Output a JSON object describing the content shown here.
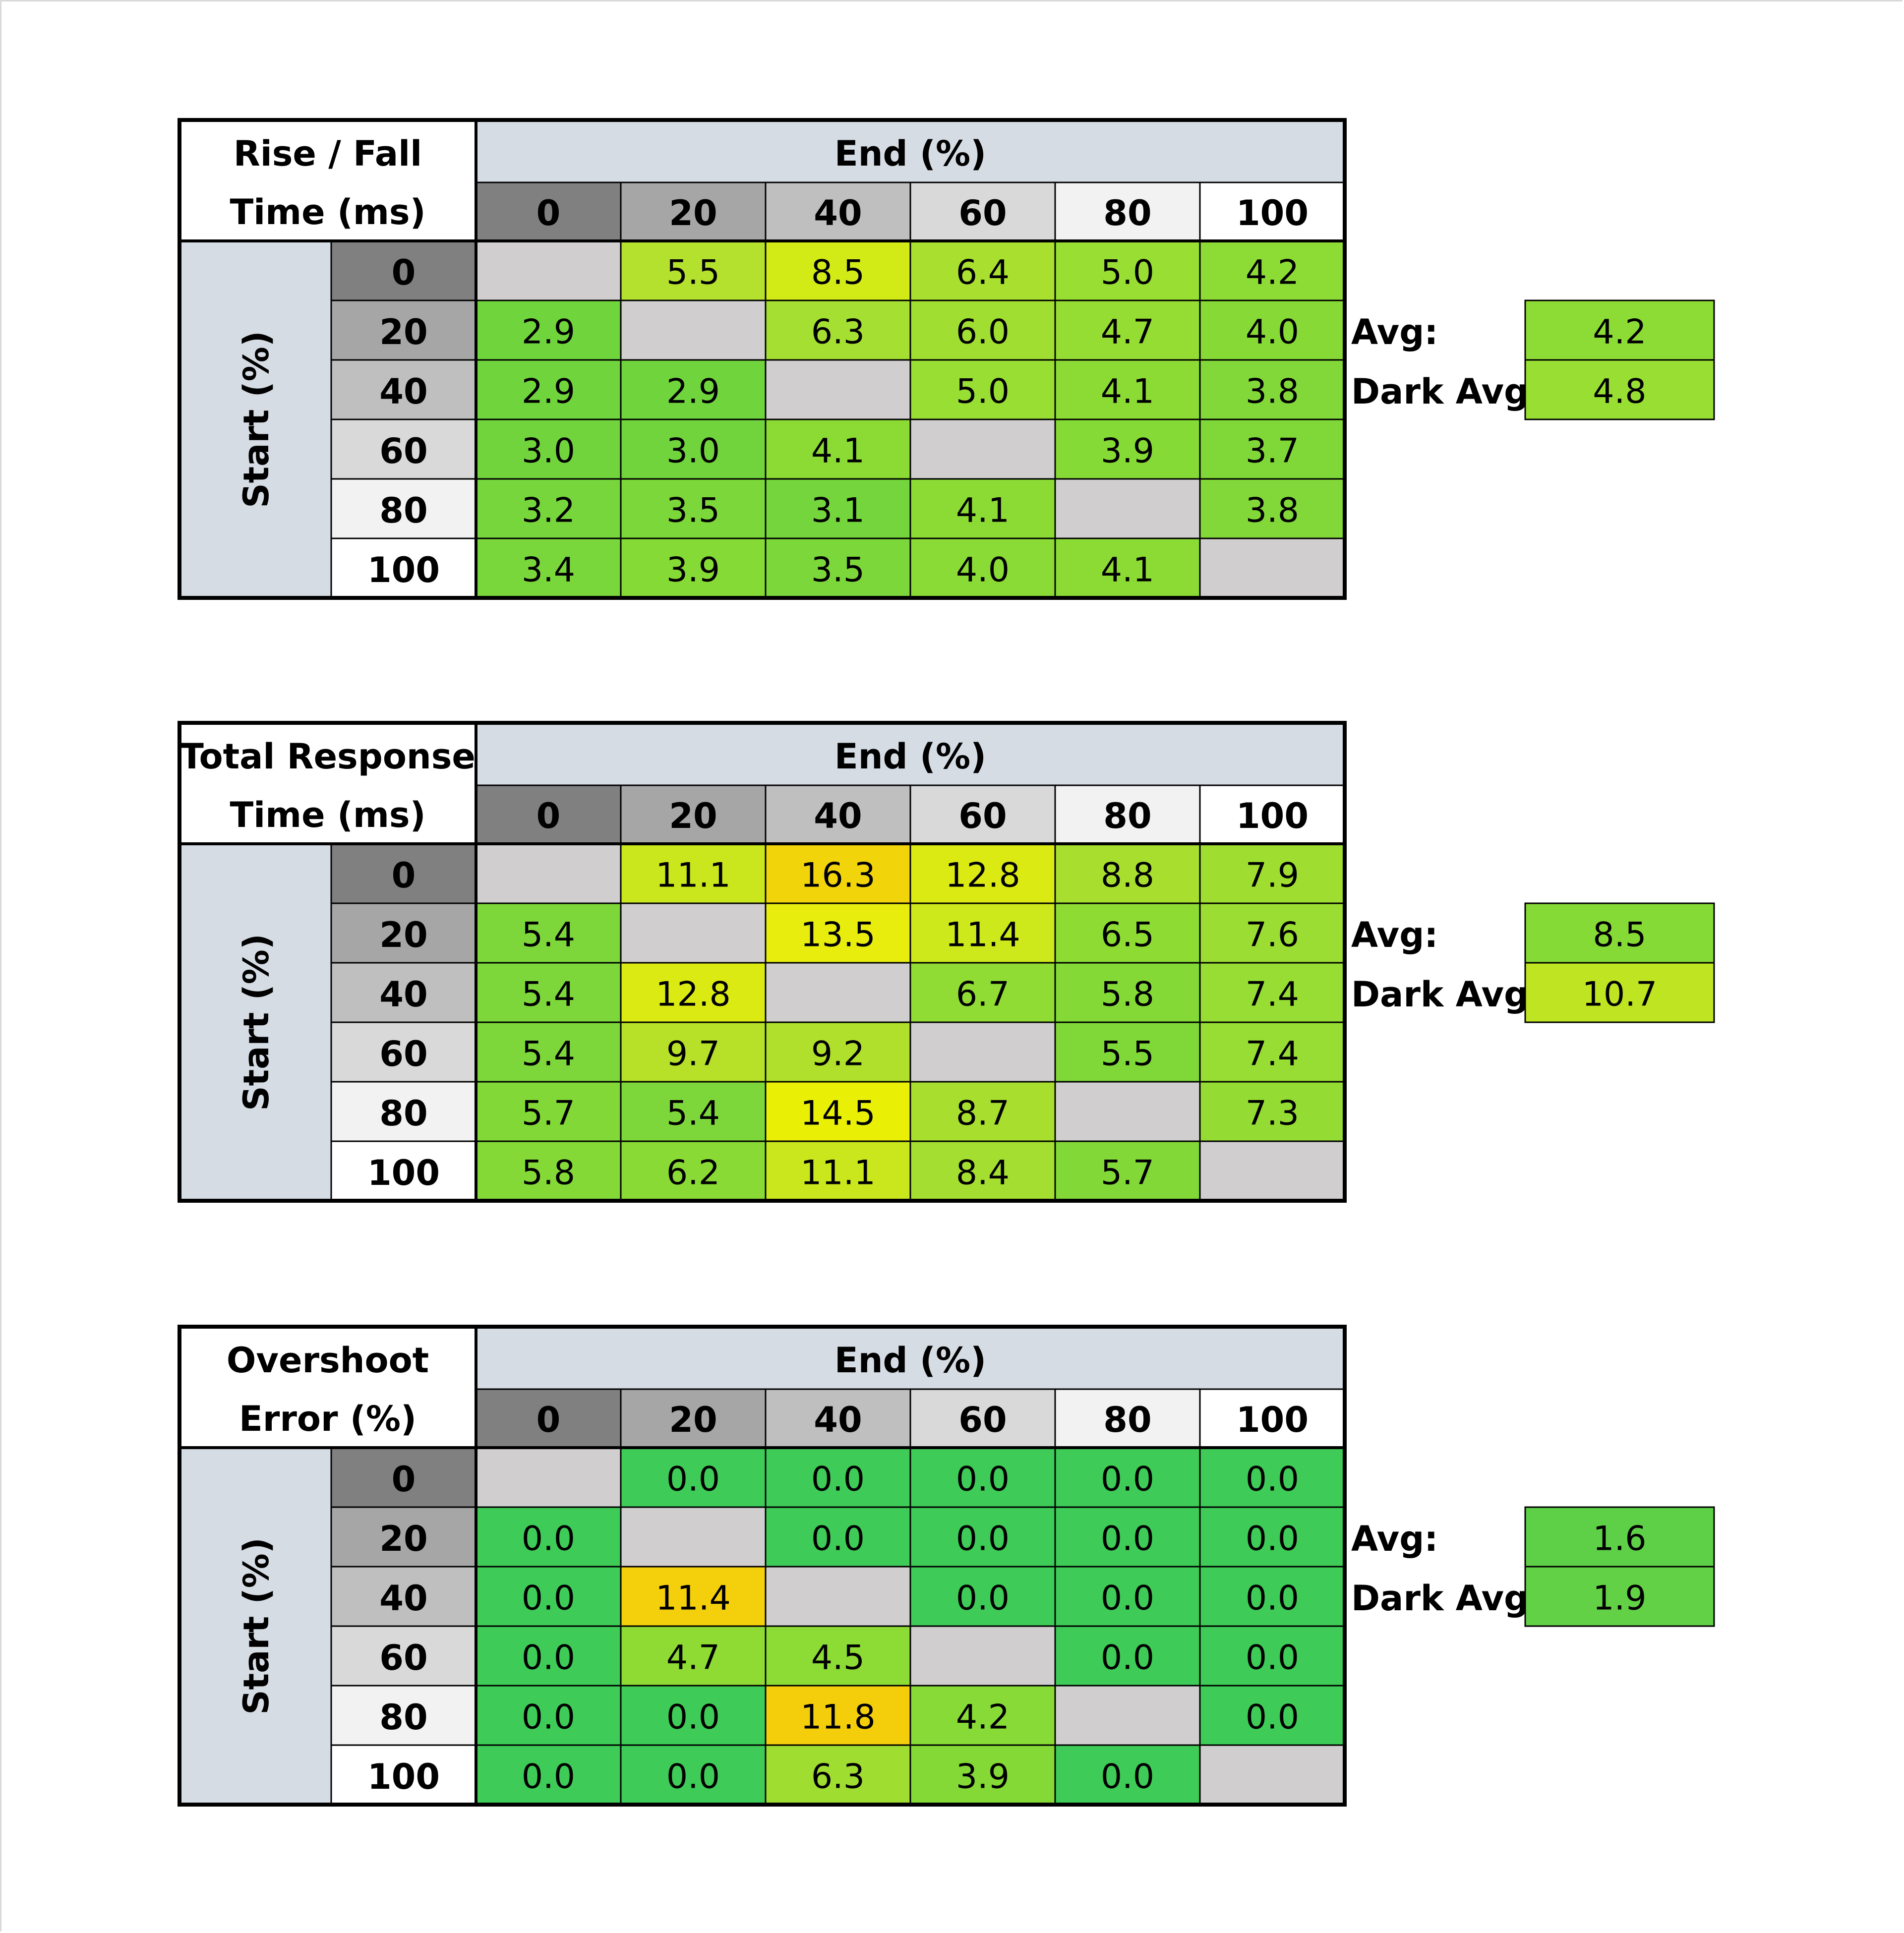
{
  "chart_data": [
    {
      "type": "heatmap",
      "title_lines": [
        "Rise / Fall",
        "Time (ms)"
      ],
      "xlabel": "End (%)",
      "ylabel": "Start (%)",
      "x_categories": [
        "0",
        "20",
        "40",
        "60",
        "80",
        "100"
      ],
      "y_categories": [
        "0",
        "20",
        "40",
        "60",
        "80",
        "100"
      ],
      "values": [
        [
          "",
          "5.5",
          "8.5",
          "6.4",
          "5.0",
          "4.2"
        ],
        [
          "2.9",
          "",
          "6.3",
          "6.0",
          "4.7",
          "4.0"
        ],
        [
          "2.9",
          "2.9",
          "",
          "5.0",
          "4.1",
          "3.8"
        ],
        [
          "3.0",
          "3.0",
          "4.1",
          "",
          "3.9",
          "3.7"
        ],
        [
          "3.2",
          "3.5",
          "3.1",
          "4.1",
          "",
          "3.8"
        ],
        [
          "3.4",
          "3.9",
          "3.5",
          "4.0",
          "4.1",
          ""
        ]
      ],
      "cell_colors": [
        [
          "#d0cece",
          "#b4e02e",
          "#d2ea16",
          "#a9e030",
          "#98de33",
          "#8ddc35"
        ],
        [
          "#70d43d",
          "#d0cece",
          "#a4df31",
          "#a0de31",
          "#96dd33",
          "#87da36"
        ],
        [
          "#70d43d",
          "#70d43d",
          "#d0cece",
          "#98de33",
          "#8cdb35",
          "#82d838"
        ],
        [
          "#71d43d",
          "#71d43d",
          "#8cdb35",
          "#d0cece",
          "#86da36",
          "#80d838"
        ],
        [
          "#76d63c",
          "#7cd73a",
          "#74d53c",
          "#8cdb35",
          "#d0cece",
          "#82d838"
        ],
        [
          "#79d63b",
          "#86da36",
          "#7cd73a",
          "#8adb35",
          "#8cdb35",
          "#d0cece"
        ]
      ],
      "summary": [
        {
          "label": "Avg:",
          "value": "4.2",
          "color": "#8ddc35"
        },
        {
          "label": "Dark Avg:",
          "value": "4.8",
          "color": "#98de33"
        }
      ]
    },
    {
      "type": "heatmap",
      "title_lines": [
        "Total Response",
        "Time (ms)"
      ],
      "xlabel": "End (%)",
      "ylabel": "Start (%)",
      "x_categories": [
        "0",
        "20",
        "40",
        "60",
        "80",
        "100"
      ],
      "y_categories": [
        "0",
        "20",
        "40",
        "60",
        "80",
        "100"
      ],
      "values": [
        [
          "",
          "11.1",
          "16.3",
          "12.8",
          "8.8",
          "7.9"
        ],
        [
          "5.4",
          "",
          "13.5",
          "11.4",
          "6.5",
          "7.6"
        ],
        [
          "5.4",
          "12.8",
          "",
          "6.7",
          "5.8",
          "7.4"
        ],
        [
          "5.4",
          "9.7",
          "9.2",
          "",
          "5.5",
          "7.4"
        ],
        [
          "5.7",
          "5.4",
          "14.5",
          "8.7",
          "",
          "7.3"
        ],
        [
          "5.8",
          "6.2",
          "11.1",
          "8.4",
          "5.7",
          ""
        ]
      ],
      "cell_colors": [
        [
          "#d0cece",
          "#c9e71c",
          "#f2d40a",
          "#dcea14",
          "#a8df2f",
          "#9fde31"
        ],
        [
          "#7ed73a",
          "#d0cece",
          "#e8ed0e",
          "#cde81b",
          "#8edb34",
          "#9bdd32"
        ],
        [
          "#7ed73a",
          "#dcea14",
          "#d0cece",
          "#90dc34",
          "#84d937",
          "#97dd33"
        ],
        [
          "#7ed73a",
          "#b6e128",
          "#b0e02b",
          "#d0cece",
          "#80d838",
          "#97dd33"
        ],
        [
          "#82d837",
          "#7ed73a",
          "#eaef06",
          "#a8df2f",
          "#d0cece",
          "#94dc33"
        ],
        [
          "#84d937",
          "#8ada35",
          "#c9e71c",
          "#a4de30",
          "#82d837",
          "#d0cece"
        ]
      ],
      "summary": [
        {
          "label": "Avg:",
          "value": "8.5",
          "color": "#86da36"
        },
        {
          "label": "Dark Avg:",
          "value": "10.7",
          "color": "#bfe421"
        }
      ]
    },
    {
      "type": "heatmap",
      "title_lines": [
        "Overshoot",
        "Error (%)"
      ],
      "xlabel": "End (%)",
      "ylabel": "Start (%)",
      "x_categories": [
        "0",
        "20",
        "40",
        "60",
        "80",
        "100"
      ],
      "y_categories": [
        "0",
        "20",
        "40",
        "60",
        "80",
        "100"
      ],
      "values": [
        [
          "",
          "0.0",
          "0.0",
          "0.0",
          "0.0",
          "0.0"
        ],
        [
          "0.0",
          "",
          "0.0",
          "0.0",
          "0.0",
          "0.0"
        ],
        [
          "0.0",
          "11.4",
          "",
          "0.0",
          "0.0",
          "0.0"
        ],
        [
          "0.0",
          "4.7",
          "4.5",
          "",
          "0.0",
          "0.0"
        ],
        [
          "0.0",
          "0.0",
          "11.8",
          "4.2",
          "",
          "0.0"
        ],
        [
          "0.0",
          "0.0",
          "6.3",
          "3.9",
          "0.0",
          ""
        ]
      ],
      "cell_colors": [
        [
          "#d0cece",
          "#3ecb57",
          "#3ecb57",
          "#3ecb57",
          "#3ecb57",
          "#3ecb57"
        ],
        [
          "#3ecb57",
          "#d0cece",
          "#3ecb57",
          "#3ecb57",
          "#3ecb57",
          "#3ecb57"
        ],
        [
          "#3ecb57",
          "#f4cf0b",
          "#d0cece",
          "#3ecb57",
          "#3ecb57",
          "#3ecb57"
        ],
        [
          "#3ecb57",
          "#8fdb34",
          "#8ddb35",
          "#d0cece",
          "#3ecb57",
          "#3ecb57"
        ],
        [
          "#3ecb57",
          "#3ecb57",
          "#f4cd0b",
          "#88da36",
          "#d0cece",
          "#3ecb57"
        ],
        [
          "#3ecb57",
          "#3ecb57",
          "#a0dd31",
          "#84d937",
          "#3ecb57",
          "#d0cece"
        ]
      ],
      "summary": [
        {
          "label": "Avg:",
          "value": "1.6",
          "color": "#5ed048"
        },
        {
          "label": "Dark Avg:",
          "value": "1.9",
          "color": "#62d146"
        }
      ]
    }
  ],
  "header_colors": {
    "title_band": "#d6dce4",
    "start_band": "#d6dce4",
    "category_shades": [
      "#808080",
      "#a6a6a6",
      "#bfbfbf",
      "#d9d9d9",
      "#f2f2f2",
      "#ffffff"
    ],
    "border": "#000000"
  }
}
